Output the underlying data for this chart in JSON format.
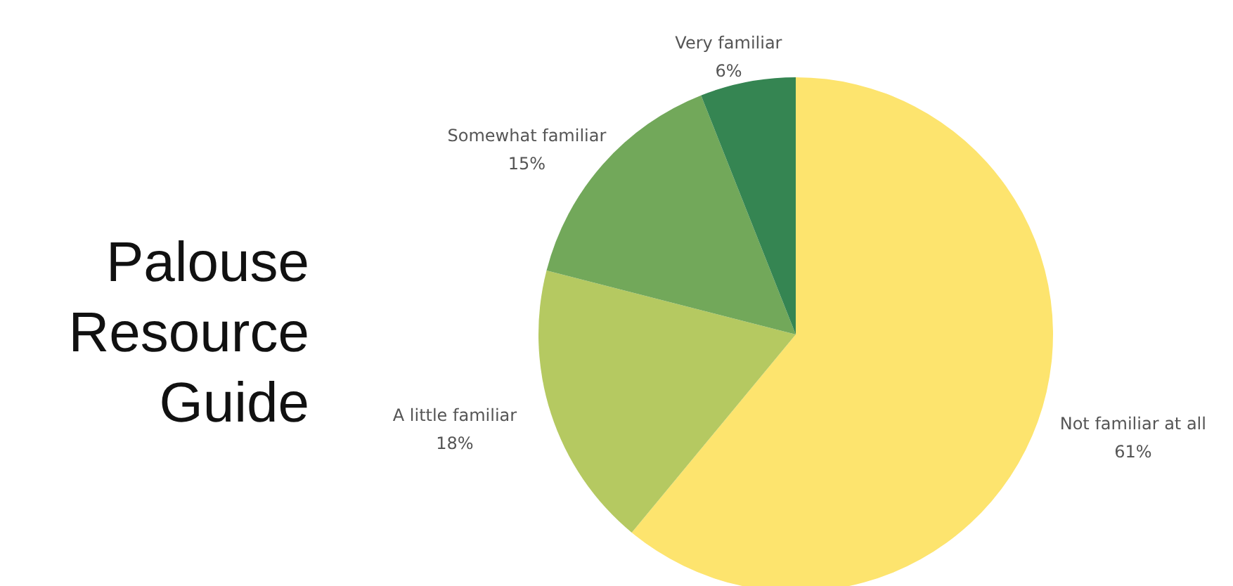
{
  "chart_data": {
    "type": "pie",
    "title": "Palouse Resource Guide",
    "categories": [
      "Not familiar at all",
      "A little familiar",
      "Somewhat familiar",
      "Very familiar"
    ],
    "values": [
      61,
      18,
      15,
      6
    ],
    "colors": [
      "#fde46e",
      "#b5c961",
      "#72a85a",
      "#358552"
    ],
    "value_labels": [
      "61%",
      "18%",
      "15%",
      "6%"
    ]
  }
}
